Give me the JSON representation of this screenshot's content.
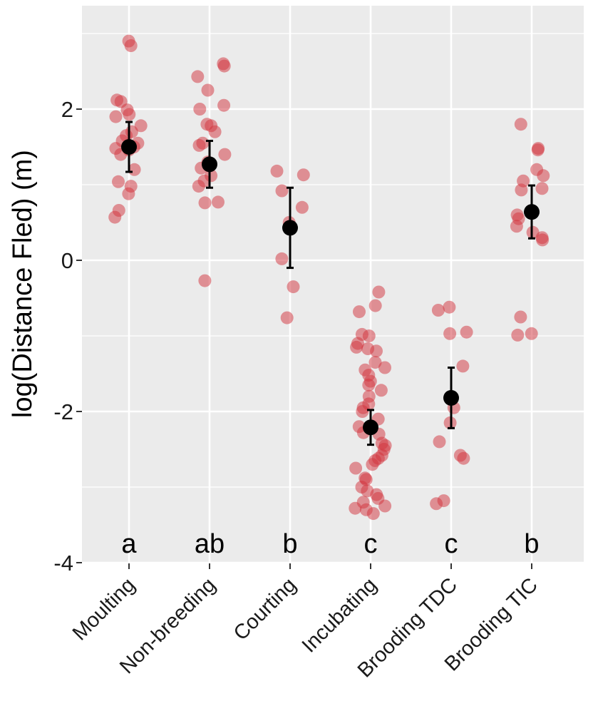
{
  "chart_data": {
    "type": "scatter",
    "title": "",
    "xlabel": "",
    "ylabel": "log(Distance Fled) (m)",
    "ylim": [
      -4,
      3.4
    ],
    "yticks": [
      "-4",
      "-2",
      "0",
      "2"
    ],
    "grid": true,
    "legend": "none",
    "colors": {
      "panel": "#ebebeb",
      "grid": "#ffffff",
      "points": "#d2323c",
      "summary": "#000000"
    },
    "categories": [
      {
        "name": "Moulting",
        "letter": "a",
        "mean": 1.5,
        "lower": 1.17,
        "upper": 1.83,
        "points": [
          2.9,
          2.84,
          2.12,
          2.1,
          1.99,
          1.93,
          1.9,
          1.78,
          1.7,
          1.65,
          1.58,
          1.55,
          1.5,
          1.48,
          1.46,
          1.4,
          1.2,
          1.04,
          0.98,
          0.88,
          0.66,
          0.57
        ]
      },
      {
        "name": "Non-breeding",
        "letter": "ab",
        "mean": 1.27,
        "lower": 0.96,
        "upper": 1.58,
        "points": [
          2.6,
          2.57,
          2.43,
          2.25,
          2.05,
          2.0,
          1.8,
          1.78,
          1.7,
          1.55,
          1.52,
          1.4,
          1.3,
          1.22,
          1.12,
          1.05,
          0.98,
          0.77,
          0.76,
          -0.27
        ]
      },
      {
        "name": "Courting",
        "letter": "b",
        "mean": 0.43,
        "lower": -0.1,
        "upper": 0.96,
        "points": [
          1.18,
          1.13,
          0.92,
          0.7,
          0.5,
          0.02,
          -0.35,
          -0.76
        ]
      },
      {
        "name": "Incubating",
        "letter": "c",
        "mean": -2.21,
        "lower": -2.44,
        "upper": -1.98,
        "points": [
          -0.42,
          -0.6,
          -0.68,
          -0.98,
          -1.0,
          -1.1,
          -1.15,
          -1.17,
          -1.2,
          -1.35,
          -1.42,
          -1.45,
          -1.52,
          -1.6,
          -1.65,
          -1.72,
          -1.8,
          -1.9,
          -1.95,
          -2.0,
          -2.1,
          -2.2,
          -2.28,
          -2.3,
          -2.42,
          -2.45,
          -2.5,
          -2.58,
          -2.62,
          -2.65,
          -2.7,
          -2.75,
          -2.88,
          -2.9,
          -3.0,
          -3.05,
          -3.1,
          -3.15,
          -3.2,
          -3.25,
          -3.28,
          -3.3,
          -3.35
        ]
      },
      {
        "name": "Brooding TDC",
        "letter": "c",
        "mean": -1.82,
        "lower": -2.22,
        "upper": -1.42,
        "points": [
          -0.62,
          -0.66,
          -0.95,
          -0.97,
          -1.4,
          -1.95,
          -2.15,
          -2.4,
          -2.58,
          -2.62,
          -3.18,
          -3.22
        ]
      },
      {
        "name": "Brooding TIC",
        "letter": "b",
        "mean": 0.64,
        "lower": 0.29,
        "upper": 0.99,
        "points": [
          1.8,
          1.48,
          1.46,
          1.2,
          1.12,
          1.05,
          0.95,
          0.93,
          0.6,
          0.55,
          0.45,
          0.37,
          0.3,
          0.27,
          -0.75,
          -0.97,
          -0.99
        ]
      }
    ]
  }
}
